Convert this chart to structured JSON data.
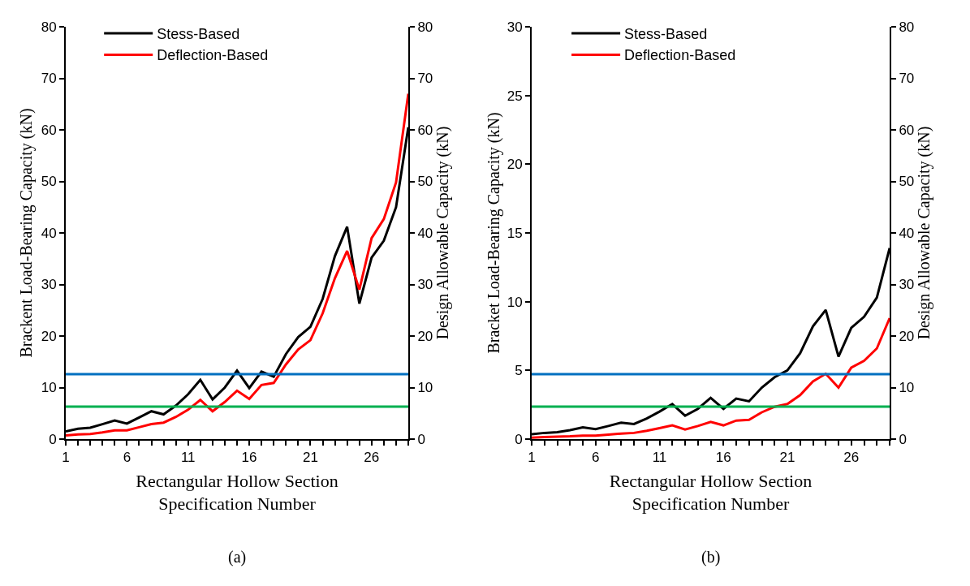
{
  "chart_data": [
    {
      "type": "line",
      "xlabel": "Rectangular Hollow Section\nSpecification Number",
      "ylabel": "Brackent Load-Bearing Capacity (kN)",
      "y2label": "Design Allowable Capacity (kN)",
      "annotations": [
        "(a)"
      ],
      "x": [
        1,
        2,
        3,
        4,
        5,
        6,
        7,
        8,
        9,
        10,
        11,
        12,
        13,
        14,
        15,
        16,
        17,
        18,
        19,
        20,
        21,
        22,
        23,
        24,
        25,
        26,
        27,
        28,
        29
      ],
      "series": [
        {
          "name": "Stess-Based",
          "color": "#000000",
          "values": [
            1.5,
            2,
            2.2,
            2.9,
            3.6,
            3.0,
            4.2,
            5.4,
            4.8,
            6.5,
            8.7,
            11.5,
            7.7,
            10.0,
            13.3,
            9.9,
            13.1,
            12.1,
            16.5,
            19.8,
            21.8,
            27.2,
            35.5,
            41.2,
            26.3,
            35.2,
            38.5,
            45.0,
            60.5
          ]
        },
        {
          "name": "Deflection-Based",
          "color": "#ff0000",
          "values": [
            0.7,
            0.9,
            1.0,
            1.3,
            1.7,
            1.7,
            2.3,
            2.9,
            3.2,
            4.3,
            5.7,
            7.6,
            5.4,
            7.2,
            9.4,
            7.8,
            10.5,
            10.9,
            14.5,
            17.4,
            19.2,
            24.4,
            31.2,
            36.5,
            29.0,
            39.0,
            42.7,
            49.8,
            67.0
          ]
        }
      ],
      "ref_lines": [
        {
          "axis": "y2",
          "value": 12.6,
          "color": "#0070c0"
        },
        {
          "axis": "y2",
          "value": 6.3,
          "color": "#00b050"
        }
      ],
      "xlim": [
        1,
        29
      ],
      "xticks": [
        1,
        {
          "value": 2,
          "label": null
        },
        {
          "value": 3,
          "label": null
        },
        {
          "value": 4,
          "label": null
        },
        {
          "value": 5,
          "label": null
        },
        6,
        {
          "value": 7,
          "label": null
        },
        {
          "value": 8,
          "label": null
        },
        {
          "value": 9,
          "label": null
        },
        {
          "value": 10,
          "label": null
        },
        11,
        {
          "value": 12,
          "label": null
        },
        {
          "value": 13,
          "label": null
        },
        {
          "value": 14,
          "label": null
        },
        {
          "value": 15,
          "label": null
        },
        16,
        {
          "value": 17,
          "label": null
        },
        {
          "value": 18,
          "label": null
        },
        {
          "value": 19,
          "label": null
        },
        {
          "value": 20,
          "label": null
        },
        21,
        {
          "value": 22,
          "label": null
        },
        {
          "value": 23,
          "label": null
        },
        {
          "value": 24,
          "label": null
        },
        {
          "value": 25,
          "label": null
        },
        26,
        {
          "value": 27,
          "label": null
        },
        {
          "value": 28,
          "label": null
        },
        {
          "value": 29,
          "label": null
        }
      ],
      "ylim": [
        0,
        80
      ],
      "yticks": [
        0,
        10,
        20,
        30,
        40,
        50,
        60,
        70,
        80
      ],
      "y2lim": [
        0,
        80
      ],
      "y2ticks": [
        0,
        10,
        20,
        30,
        40,
        50,
        60,
        70,
        80
      ],
      "grid": false,
      "legend": "top left",
      "marker": "none",
      "line_style": "solid"
    },
    {
      "type": "line",
      "xlabel": "Rectangular Hollow Section\nSpecification Number",
      "ylabel": "Bracket Load-Bearing Capacity (kN)",
      "y2label": "Design Allowable Capacity (kN)",
      "annotations": [
        "(b)"
      ],
      "x": [
        1,
        2,
        3,
        4,
        5,
        6,
        7,
        8,
        9,
        10,
        11,
        12,
        13,
        14,
        15,
        16,
        17,
        18,
        19,
        20,
        21,
        22,
        23,
        24,
        25,
        26,
        27,
        28,
        29
      ],
      "series": [
        {
          "name": "Stess-Based",
          "color": "#000000",
          "values": [
            0.35,
            0.45,
            0.5,
            0.65,
            0.85,
            0.72,
            0.95,
            1.2,
            1.1,
            1.5,
            2.0,
            2.55,
            1.7,
            2.2,
            3.0,
            2.2,
            2.95,
            2.75,
            3.75,
            4.5,
            5.0,
            6.25,
            8.2,
            9.4,
            6.0,
            8.1,
            8.9,
            10.3,
            13.9
          ]
        },
        {
          "name": "Deflection-Based",
          "color": "#ff0000",
          "values": [
            0.1,
            0.15,
            0.18,
            0.2,
            0.25,
            0.25,
            0.32,
            0.4,
            0.45,
            0.6,
            0.8,
            1.0,
            0.7,
            0.95,
            1.25,
            1.0,
            1.35,
            1.4,
            1.95,
            2.35,
            2.55,
            3.2,
            4.2,
            4.75,
            3.75,
            5.2,
            5.7,
            6.6,
            8.8
          ]
        }
      ],
      "ref_lines": [
        {
          "axis": "y2",
          "value": 12.6,
          "color": "#0070c0"
        },
        {
          "axis": "y2",
          "value": 6.3,
          "color": "#00b050"
        }
      ],
      "xlim": [
        1,
        29
      ],
      "xticks": [
        1,
        {
          "value": 2,
          "label": null
        },
        {
          "value": 3,
          "label": null
        },
        {
          "value": 4,
          "label": null
        },
        {
          "value": 5,
          "label": null
        },
        6,
        {
          "value": 7,
          "label": null
        },
        {
          "value": 8,
          "label": null
        },
        {
          "value": 9,
          "label": null
        },
        {
          "value": 10,
          "label": null
        },
        11,
        {
          "value": 12,
          "label": null
        },
        {
          "value": 13,
          "label": null
        },
        {
          "value": 14,
          "label": null
        },
        {
          "value": 15,
          "label": null
        },
        16,
        {
          "value": 17,
          "label": null
        },
        {
          "value": 18,
          "label": null
        },
        {
          "value": 19,
          "label": null
        },
        {
          "value": 20,
          "label": null
        },
        21,
        {
          "value": 22,
          "label": null
        },
        {
          "value": 23,
          "label": null
        },
        {
          "value": 24,
          "label": null
        },
        {
          "value": 25,
          "label": null
        },
        26,
        {
          "value": 27,
          "label": null
        },
        {
          "value": 28,
          "label": null
        },
        {
          "value": 29,
          "label": null
        }
      ],
      "ylim": [
        0,
        30
      ],
      "yticks": [
        0,
        5,
        10,
        15,
        20,
        25,
        30
      ],
      "y2lim": [
        0,
        80
      ],
      "y2ticks": [
        0,
        10,
        20,
        30,
        40,
        50,
        60,
        70,
        80
      ],
      "grid": false,
      "legend": "top left",
      "marker": "none",
      "line_style": "solid"
    }
  ]
}
